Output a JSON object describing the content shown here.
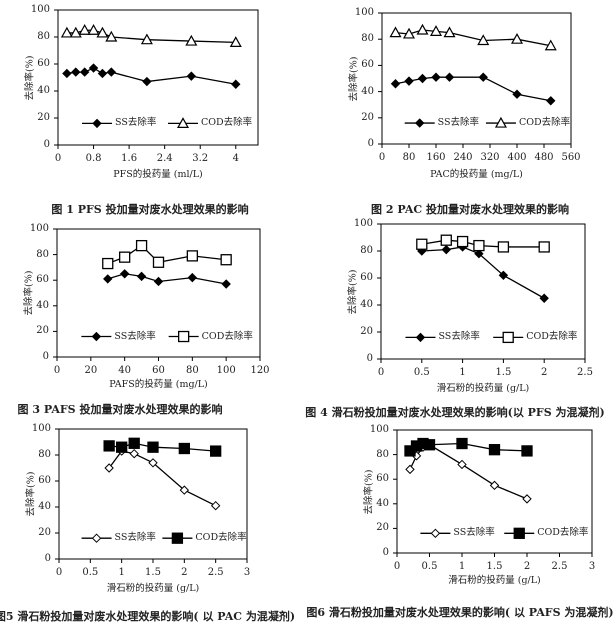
{
  "chart_data": [
    {
      "type": "line",
      "title": "图 1   PFS 投加量对废水处理效果的影响",
      "xlabel": "PFS的投药量 (ml/L)",
      "ylabel": "去除率(%)",
      "xlim": [
        0,
        4.5
      ],
      "ylim": [
        0,
        100
      ],
      "xticks": [
        "0",
        "0.8",
        "1.6",
        "2.4",
        "3.2",
        "4"
      ],
      "yticks": [
        "0",
        "20",
        "40",
        "60",
        "80",
        "100"
      ],
      "legend": "bottom-inside",
      "series": [
        {
          "name": "SS去除率",
          "marker": "diamond-filled",
          "x": [
            0.2,
            0.4,
            0.6,
            0.8,
            1.0,
            1.2,
            2,
            3,
            4
          ],
          "values": [
            53,
            54,
            54,
            57,
            53,
            54,
            47,
            51,
            45
          ]
        },
        {
          "name": "COD去除率",
          "marker": "triangle-open",
          "x": [
            0.2,
            0.4,
            0.6,
            0.8,
            1.0,
            1.2,
            2,
            3,
            4
          ],
          "values": [
            83,
            83,
            85,
            85,
            83,
            80,
            78,
            77,
            76
          ]
        }
      ]
    },
    {
      "type": "line",
      "title": "图 2   PAC 投加量对废水处理效果的影响",
      "xlabel": "PAC的投药量 (mg/L)",
      "ylabel": "去除率(%)",
      "xlim": [
        0,
        560
      ],
      "ylim": [
        0,
        100
      ],
      "xticks": [
        "0",
        "80",
        "160",
        "240",
        "320",
        "400",
        "480",
        "560"
      ],
      "yticks": [
        "0",
        "20",
        "40",
        "60",
        "80",
        "100"
      ],
      "legend": "bottom-inside",
      "series": [
        {
          "name": "SS去除率",
          "marker": "diamond-filled",
          "x": [
            40,
            80,
            120,
            160,
            200,
            300,
            400,
            500
          ],
          "values": [
            46,
            48,
            50,
            51,
            51,
            51,
            38,
            33
          ]
        },
        {
          "name": "COD去除率",
          "marker": "triangle-open",
          "x": [
            40,
            80,
            120,
            160,
            200,
            300,
            400,
            500
          ],
          "values": [
            85,
            84,
            87,
            86,
            85,
            79,
            80,
            75
          ]
        }
      ]
    },
    {
      "type": "line",
      "title": "图 3   PAFS 投加量对废水处理效果的影响",
      "xlabel": "PAFS的投药量 (mg/L)",
      "ylabel": "去除率(%)",
      "xlim": [
        0,
        120
      ],
      "ylim": [
        0,
        100
      ],
      "xticks": [
        "0",
        "20",
        "40",
        "60",
        "80",
        "100",
        "120"
      ],
      "yticks": [
        "0",
        "20",
        "40",
        "60",
        "80",
        "100"
      ],
      "legend": "bottom-inside",
      "series": [
        {
          "name": "SS去除率",
          "marker": "diamond-filled",
          "x": [
            30,
            40,
            50,
            60,
            80,
            100
          ],
          "values": [
            61,
            65,
            63,
            59,
            62,
            57
          ]
        },
        {
          "name": "COD去除率",
          "marker": "square-open",
          "x": [
            30,
            40,
            50,
            60,
            80,
            100
          ],
          "values": [
            73,
            78,
            87,
            74,
            79,
            76
          ]
        }
      ]
    },
    {
      "type": "line",
      "title": "图 4   滑石粉投加量对废水处理效果的影响(以 PFS 为混凝剂)",
      "xlabel": "滑石粉的投药量 (g/L)",
      "ylabel": "去除率(%)",
      "xlim": [
        0,
        2.5
      ],
      "ylim": [
        0,
        100
      ],
      "xticks": [
        "0",
        "0.5",
        "1",
        "1.5",
        "2",
        "2.5"
      ],
      "yticks": [
        "0",
        "20",
        "40",
        "60",
        "80",
        "100"
      ],
      "legend": "bottom-inside",
      "series": [
        {
          "name": "SS去除率",
          "marker": "diamond-filled",
          "x": [
            0.5,
            0.8,
            1.0,
            1.2,
            1.5,
            2
          ],
          "values": [
            80,
            81,
            83,
            78,
            62,
            45
          ]
        },
        {
          "name": "COD去除率",
          "marker": "square-open",
          "x": [
            0.5,
            0.8,
            1.0,
            1.2,
            1.5,
            2
          ],
          "values": [
            85,
            88,
            87,
            84,
            83,
            83
          ]
        }
      ]
    },
    {
      "type": "line",
      "title": "图5   滑石粉投加量对废水处理效果的影响( 以 PAC 为混凝剂)",
      "xlabel": "滑石粉的投药量 (g/L)",
      "ylabel": "去除率(%)",
      "xlim": [
        0,
        3
      ],
      "ylim": [
        0,
        100
      ],
      "xticks": [
        "0",
        "0.5",
        "1",
        "1.5",
        "2",
        "2.5",
        "3"
      ],
      "yticks": [
        "0",
        "20",
        "40",
        "60",
        "80",
        "100"
      ],
      "legend": "bottom-inside",
      "series": [
        {
          "name": "SS去除率",
          "marker": "diamond-open",
          "x": [
            0.8,
            1.0,
            1.2,
            1.5,
            2,
            2.5
          ],
          "values": [
            70,
            83,
            81,
            74,
            53,
            41
          ]
        },
        {
          "name": "COD去除率",
          "marker": "square-filled",
          "x": [
            0.8,
            1.0,
            1.2,
            1.5,
            2,
            2.5
          ],
          "values": [
            87,
            86,
            89,
            86,
            85,
            83
          ]
        }
      ]
    },
    {
      "type": "line",
      "title": "图6   滑石粉投加量对废水处理效果的影响( 以 PAFS 为混凝剂)",
      "xlabel": "滑石粉的投药量 (g/L)",
      "ylabel": "去除率(%)",
      "xlim": [
        0,
        3
      ],
      "ylim": [
        0,
        100
      ],
      "xticks": [
        "0",
        "0.5",
        "1",
        "1.5",
        "2",
        "2.5",
        "3"
      ],
      "yticks": [
        "0",
        "20",
        "40",
        "60",
        "80",
        "100"
      ],
      "legend": "bottom-inside",
      "series": [
        {
          "name": "SS去除率",
          "marker": "diamond-open",
          "x": [
            0.2,
            0.3,
            0.4,
            0.5,
            1,
            1.5,
            2
          ],
          "values": [
            68,
            79,
            86,
            88,
            72,
            55,
            44
          ]
        },
        {
          "name": "COD去除率",
          "marker": "square-filled",
          "x": [
            0.2,
            0.3,
            0.4,
            0.5,
            1,
            1.5,
            2
          ],
          "values": [
            83,
            87,
            89,
            88,
            89,
            84,
            83
          ]
        }
      ]
    }
  ]
}
